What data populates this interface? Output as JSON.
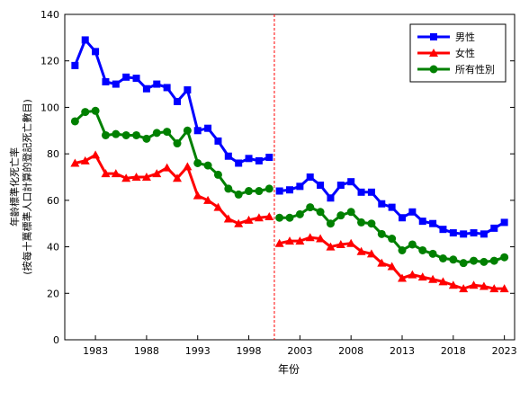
{
  "chart_data": {
    "type": "line",
    "xlabel": "年份",
    "ylabel": "年齡標準化死亡率",
    "ylabel_sub": "(按每十萬標準人口計算的登記死亡數目)",
    "ylim": [
      0,
      140
    ],
    "yticks": [
      0,
      20,
      40,
      60,
      80,
      100,
      120,
      140
    ],
    "xlim": [
      1980,
      2024
    ],
    "xticks": [
      1983,
      1988,
      1993,
      1998,
      2003,
      2008,
      2013,
      2018,
      2023
    ],
    "break_after": 2000,
    "break_at": 2000.5,
    "legend_position": "top-right",
    "grid": false,
    "series": [
      {
        "name": "男性",
        "color": "#0000ff",
        "marker": "square",
        "x": [
          1981,
          1982,
          1983,
          1984,
          1985,
          1986,
          1987,
          1988,
          1989,
          1990,
          1991,
          1992,
          1993,
          1994,
          1995,
          1996,
          1997,
          1998,
          1999,
          2000,
          2001,
          2002,
          2003,
          2004,
          2005,
          2006,
          2007,
          2008,
          2009,
          2010,
          2011,
          2012,
          2013,
          2014,
          2015,
          2016,
          2017,
          2018,
          2019,
          2020,
          2021,
          2022,
          2023
        ],
        "values": [
          118,
          129,
          124,
          111,
          110,
          113,
          112.5,
          108,
          110,
          108.5,
          102.5,
          107.5,
          90,
          91,
          85.5,
          79,
          76,
          78,
          77,
          78.5,
          64,
          64.5,
          66,
          70,
          66.5,
          61,
          66.5,
          68,
          63.5,
          63.5,
          58.5,
          57,
          52.5,
          55,
          51,
          50,
          47.5,
          46,
          45.5,
          46,
          45.5,
          48,
          50.5
        ]
      },
      {
        "name": "女性",
        "color": "#ff0000",
        "marker": "triangle",
        "x": [
          1981,
          1982,
          1983,
          1984,
          1985,
          1986,
          1987,
          1988,
          1989,
          1990,
          1991,
          1992,
          1993,
          1994,
          1995,
          1996,
          1997,
          1998,
          1999,
          2000,
          2001,
          2002,
          2003,
          2004,
          2005,
          2006,
          2007,
          2008,
          2009,
          2010,
          2011,
          2012,
          2013,
          2014,
          2015,
          2016,
          2017,
          2018,
          2019,
          2020,
          2021,
          2022,
          2023
        ],
        "values": [
          76,
          77,
          79.5,
          71.5,
          71.5,
          69.5,
          70,
          70,
          71.5,
          74,
          69.5,
          74.5,
          62,
          60,
          57,
          52,
          50,
          51.5,
          52.5,
          53,
          41.5,
          42.5,
          42.5,
          44,
          43.5,
          40,
          41,
          41.5,
          38,
          37,
          33,
          31.5,
          26.5,
          28,
          27,
          26,
          25,
          23.5,
          22,
          23.5,
          23,
          22,
          22
        ]
      },
      {
        "name": "所有性別",
        "color": "#008000",
        "marker": "circle",
        "x": [
          1981,
          1982,
          1983,
          1984,
          1985,
          1986,
          1987,
          1988,
          1989,
          1990,
          1991,
          1992,
          1993,
          1994,
          1995,
          1996,
          1997,
          1998,
          1999,
          2000,
          2001,
          2002,
          2003,
          2004,
          2005,
          2006,
          2007,
          2008,
          2009,
          2010,
          2011,
          2012,
          2013,
          2014,
          2015,
          2016,
          2017,
          2018,
          2019,
          2020,
          2021,
          2022,
          2023
        ],
        "values": [
          94,
          98,
          98.5,
          88,
          88.5,
          88,
          88,
          86.5,
          89,
          89.5,
          84.5,
          90,
          76,
          75,
          71,
          65,
          62.5,
          64,
          64,
          65,
          52.5,
          52.5,
          54,
          57,
          55,
          50,
          53.5,
          55,
          50.5,
          50,
          45.5,
          43.5,
          38.5,
          41,
          38.5,
          37,
          35,
          34.5,
          33,
          34,
          33.5,
          34,
          35.5
        ]
      }
    ]
  }
}
